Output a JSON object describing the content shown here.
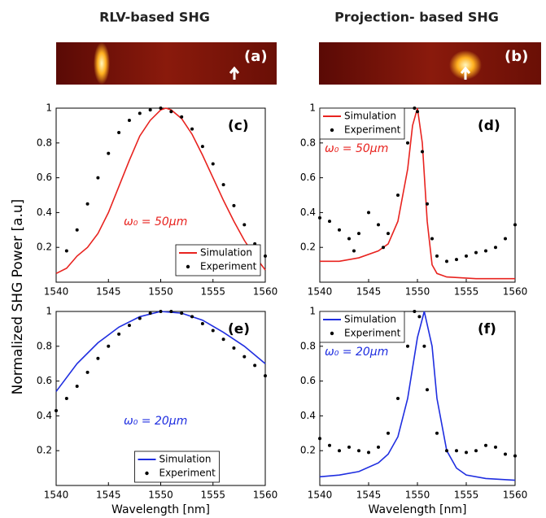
{
  "column_titles": [
    "RLV-based SHG",
    "Projection- based SHG"
  ],
  "images": [
    {
      "label": "(a)"
    },
    {
      "label": "(b)"
    }
  ],
  "ylabel": "Normalized SHG Power [a.u]",
  "chart_data": [
    {
      "type": "line",
      "panel_label": "(c)",
      "annotation": "ω₀ = 50μm",
      "annotation_color": "#e8231f",
      "xlim": [
        1540,
        1560
      ],
      "xticks": [
        1540,
        1545,
        1550,
        1555,
        1560
      ],
      "ylim": [
        0,
        1
      ],
      "yticks": [
        0.2,
        0.4,
        0.6,
        0.8,
        1
      ],
      "legend": "lower right",
      "series": [
        {
          "name": "Simulation",
          "color": "#e8231f",
          "style": "line",
          "x": [
            1540,
            1541,
            1542,
            1543,
            1544,
            1545,
            1546,
            1547,
            1548,
            1549,
            1550,
            1550.5,
            1551,
            1552,
            1553,
            1554,
            1555,
            1556,
            1557,
            1558,
            1559,
            1560
          ],
          "values": [
            0.05,
            0.08,
            0.15,
            0.2,
            0.28,
            0.4,
            0.55,
            0.7,
            0.84,
            0.93,
            0.99,
            1,
            0.99,
            0.94,
            0.85,
            0.73,
            0.6,
            0.47,
            0.35,
            0.24,
            0.15,
            0.07
          ]
        },
        {
          "name": "Experiment",
          "color": "#000000",
          "style": "dots",
          "x": [
            1541,
            1542,
            1543,
            1544,
            1545,
            1546,
            1547,
            1548,
            1549,
            1550,
            1551,
            1552,
            1553,
            1554,
            1555,
            1556,
            1557,
            1558,
            1559,
            1560
          ],
          "values": [
            0.18,
            0.3,
            0.45,
            0.6,
            0.74,
            0.86,
            0.93,
            0.97,
            0.99,
            1,
            0.98,
            0.95,
            0.88,
            0.78,
            0.68,
            0.56,
            0.44,
            0.33,
            0.22,
            0.15
          ]
        }
      ]
    },
    {
      "type": "line",
      "panel_label": "(d)",
      "annotation": "ω₀ = 50μm",
      "annotation_color": "#e8231f",
      "xlim": [
        1540,
        1560
      ],
      "xticks": [
        1540,
        1545,
        1550,
        1555,
        1560
      ],
      "ylim": [
        0,
        1
      ],
      "yticks": [
        0.2,
        0.4,
        0.6,
        0.8,
        1
      ],
      "legend": "upper left",
      "series": [
        {
          "name": "Simulation",
          "color": "#e8231f",
          "style": "line",
          "x": [
            1540,
            1542,
            1544,
            1546,
            1547,
            1548,
            1549,
            1549.5,
            1550,
            1550.5,
            1551,
            1551.5,
            1552,
            1553,
            1556,
            1560
          ],
          "values": [
            0.12,
            0.12,
            0.14,
            0.18,
            0.22,
            0.35,
            0.65,
            0.9,
            1,
            0.8,
            0.35,
            0.1,
            0.05,
            0.03,
            0.02,
            0.02
          ]
        },
        {
          "name": "Experiment",
          "color": "#000000",
          "style": "dots",
          "x": [
            1540,
            1541,
            1542,
            1543,
            1543.5,
            1544,
            1545,
            1546,
            1546.5,
            1547,
            1548,
            1549,
            1549.7,
            1550,
            1550.5,
            1551,
            1551.5,
            1552,
            1553,
            1554,
            1555,
            1556,
            1557,
            1558,
            1559,
            1560
          ],
          "values": [
            0.37,
            0.35,
            0.3,
            0.25,
            0.18,
            0.28,
            0.4,
            0.33,
            0.2,
            0.28,
            0.5,
            0.8,
            1,
            0.98,
            0.75,
            0.45,
            0.25,
            0.15,
            0.12,
            0.13,
            0.15,
            0.17,
            0.18,
            0.2,
            0.25,
            0.33
          ]
        }
      ]
    },
    {
      "type": "line",
      "panel_label": "(e)",
      "annotation": "ω₀ = 20μm",
      "annotation_color": "#1f2ee0",
      "xlabel": "Wavelength [nm]",
      "xlim": [
        1540,
        1560
      ],
      "xticks": [
        1540,
        1545,
        1550,
        1555,
        1560
      ],
      "ylim": [
        0,
        1
      ],
      "yticks": [
        0.2,
        0.4,
        0.6,
        0.8,
        1
      ],
      "legend": "lower center",
      "series": [
        {
          "name": "Simulation",
          "color": "#1f2ee0",
          "style": "line",
          "x": [
            1540,
            1542,
            1544,
            1546,
            1548,
            1550,
            1552,
            1554,
            1556,
            1558,
            1560
          ],
          "values": [
            0.54,
            0.7,
            0.82,
            0.91,
            0.97,
            1,
            0.99,
            0.95,
            0.88,
            0.8,
            0.7
          ]
        },
        {
          "name": "Experiment",
          "color": "#000000",
          "style": "dots",
          "x": [
            1540,
            1541,
            1542,
            1543,
            1544,
            1545,
            1546,
            1547,
            1548,
            1549,
            1550,
            1551,
            1552,
            1553,
            1554,
            1555,
            1556,
            1557,
            1558,
            1559,
            1560
          ],
          "values": [
            0.43,
            0.5,
            0.57,
            0.65,
            0.73,
            0.8,
            0.87,
            0.92,
            0.96,
            0.99,
            1,
            1,
            0.99,
            0.97,
            0.93,
            0.89,
            0.84,
            0.79,
            0.74,
            0.69,
            0.63
          ]
        }
      ]
    },
    {
      "type": "line",
      "panel_label": "(f)",
      "annotation": "ω₀ = 20μm",
      "annotation_color": "#1f2ee0",
      "xlabel": "Wavelength [nm]",
      "xlim": [
        1540,
        1560
      ],
      "xticks": [
        1540,
        1545,
        1550,
        1555,
        1560
      ],
      "ylim": [
        0,
        1
      ],
      "yticks": [
        0.2,
        0.4,
        0.6,
        0.8,
        1
      ],
      "legend": "upper left",
      "series": [
        {
          "name": "Simulation",
          "color": "#1f2ee0",
          "style": "line",
          "x": [
            1540,
            1542,
            1544,
            1546,
            1547,
            1548,
            1549,
            1550,
            1550.7,
            1551.5,
            1552,
            1553,
            1554,
            1555,
            1557,
            1560
          ],
          "values": [
            0.05,
            0.06,
            0.08,
            0.13,
            0.18,
            0.28,
            0.5,
            0.85,
            1,
            0.8,
            0.5,
            0.2,
            0.1,
            0.06,
            0.04,
            0.03
          ]
        },
        {
          "name": "Experiment",
          "color": "#000000",
          "style": "dots",
          "x": [
            1540,
            1541,
            1542,
            1543,
            1544,
            1545,
            1546,
            1547,
            1548,
            1549,
            1549.7,
            1550.2,
            1550.7,
            1551,
            1552,
            1553,
            1554,
            1555,
            1556,
            1557,
            1558,
            1559,
            1560
          ],
          "values": [
            0.27,
            0.23,
            0.2,
            0.22,
            0.2,
            0.19,
            0.22,
            0.3,
            0.5,
            0.8,
            1,
            0.97,
            0.8,
            0.55,
            0.3,
            0.2,
            0.2,
            0.19,
            0.2,
            0.23,
            0.22,
            0.18,
            0.17
          ]
        }
      ]
    }
  ]
}
